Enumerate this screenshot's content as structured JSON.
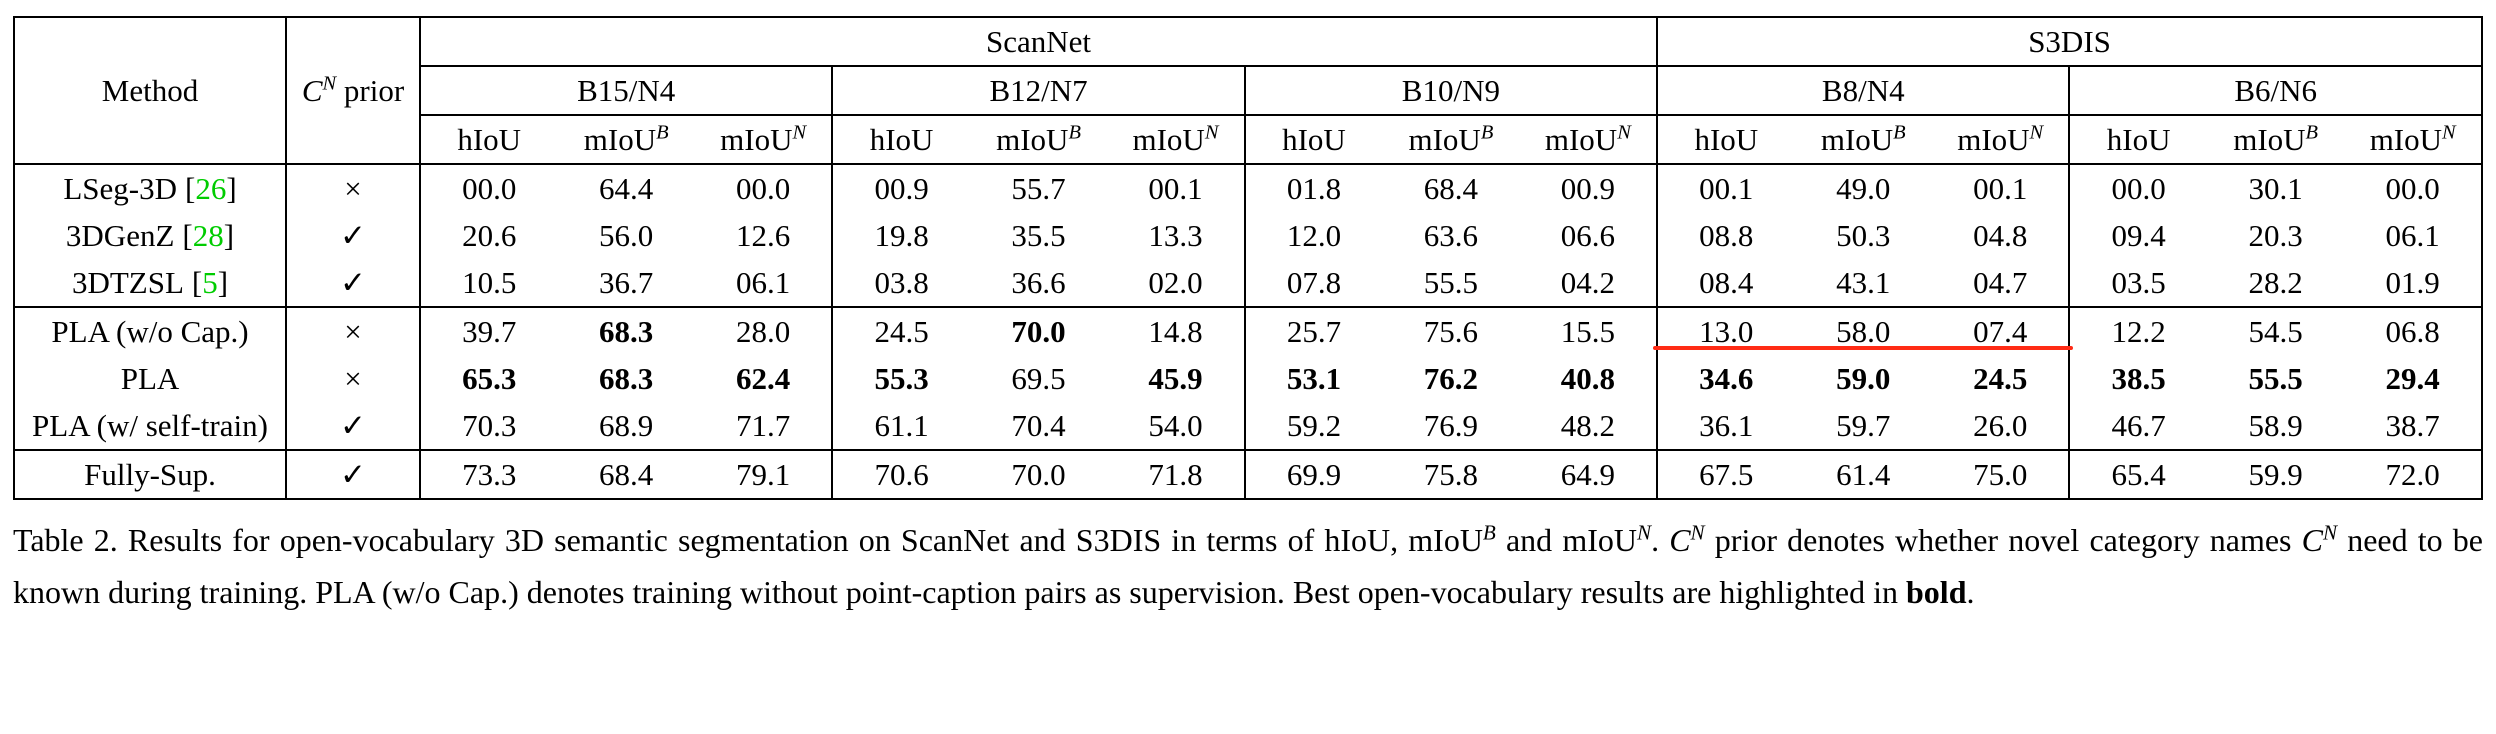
{
  "colors": {
    "citation_green": "#00cc00",
    "annotation_red": "#ff2b15",
    "text": "#000000",
    "background": "#ffffff"
  },
  "table": {
    "citation_format": {
      "open": "[",
      "close": "]"
    },
    "header": {
      "method_label": "Method",
      "prior_label": {
        "cal": "C",
        "sup": "N",
        "rest": " prior"
      },
      "datasets": [
        {
          "label": "ScanNet",
          "partitions": [
            "B15/N4",
            "B12/N7",
            "B10/N9"
          ]
        },
        {
          "label": "S3DIS",
          "partitions": [
            "B8/N4",
            "B6/N6"
          ]
        }
      ],
      "metrics": [
        {
          "t": "hIoU",
          "sup": ""
        },
        {
          "t": "mIoU",
          "sup": "B"
        },
        {
          "t": "mIoU",
          "sup": "N"
        }
      ]
    },
    "rows": [
      {
        "method": "LSeg-3D",
        "cite": "26",
        "prior": "×",
        "values": [
          "00.0",
          "64.4",
          "00.0",
          "00.9",
          "55.7",
          "00.1",
          "01.8",
          "68.4",
          "00.9",
          "00.1",
          "49.0",
          "00.1",
          "00.0",
          "30.1",
          "00.0"
        ],
        "bold": [],
        "group_end": false
      },
      {
        "method": "3DGenZ",
        "cite": "28",
        "prior": "✓",
        "values": [
          "20.6",
          "56.0",
          "12.6",
          "19.8",
          "35.5",
          "13.3",
          "12.0",
          "63.6",
          "06.6",
          "08.8",
          "50.3",
          "04.8",
          "09.4",
          "20.3",
          "06.1"
        ],
        "bold": [],
        "group_end": false
      },
      {
        "method": "3DTZSL",
        "cite": "5",
        "prior": "✓",
        "values": [
          "10.5",
          "36.7",
          "06.1",
          "03.8",
          "36.6",
          "02.0",
          "07.8",
          "55.5",
          "04.2",
          "08.4",
          "43.1",
          "04.7",
          "03.5",
          "28.2",
          "01.9"
        ],
        "bold": [],
        "group_end": true
      },
      {
        "method": "PLA (w/o Cap.)",
        "cite": null,
        "prior": "×",
        "values": [
          "39.7",
          "68.3",
          "28.0",
          "24.5",
          "70.0",
          "14.8",
          "25.7",
          "75.6",
          "15.5",
          "13.0",
          "58.0",
          "07.4",
          "12.2",
          "54.5",
          "06.8"
        ],
        "bold": [
          1,
          4
        ],
        "red_underline": [
          9,
          10,
          11
        ],
        "group_end": false
      },
      {
        "method": "PLA",
        "cite": null,
        "prior": "×",
        "values": [
          "65.3",
          "68.3",
          "62.4",
          "55.3",
          "69.5",
          "45.9",
          "53.1",
          "76.2",
          "40.8",
          "34.6",
          "59.0",
          "24.5",
          "38.5",
          "55.5",
          "29.4"
        ],
        "bold": [
          0,
          1,
          2,
          3,
          5,
          6,
          7,
          8,
          9,
          10,
          11,
          12,
          13,
          14
        ],
        "group_end": false
      },
      {
        "method": "PLA (w/ self-train)",
        "cite": null,
        "prior": "✓",
        "values": [
          "70.3",
          "68.9",
          "71.7",
          "61.1",
          "70.4",
          "54.0",
          "59.2",
          "76.9",
          "48.2",
          "36.1",
          "59.7",
          "26.0",
          "46.7",
          "58.9",
          "38.7"
        ],
        "bold": [],
        "group_end": true
      },
      {
        "method": "Fully-Sup.",
        "cite": null,
        "prior": "✓",
        "values": [
          "73.3",
          "68.4",
          "79.1",
          "70.6",
          "70.0",
          "71.8",
          "69.9",
          "75.8",
          "64.9",
          "67.5",
          "61.4",
          "75.0",
          "65.4",
          "59.9",
          "72.0"
        ],
        "bold": [],
        "group_end": false
      }
    ],
    "annotation": {
      "type": "hand-drawn-red-underline",
      "row_index": 3,
      "cell_indices": [
        9,
        10,
        11
      ],
      "color": "#ff2b15"
    }
  },
  "caption": {
    "segments": [
      {
        "style": "plain",
        "t": "Table 2. Results for open-vocabulary 3D semantic segmentation on ScanNet and S3DIS in terms of hIoU, mIoU"
      },
      {
        "style": "sup-ital",
        "t": "B"
      },
      {
        "style": "plain",
        "t": " and mIoU"
      },
      {
        "style": "sup-ital",
        "t": "N"
      },
      {
        "style": "plain",
        "t": ". "
      },
      {
        "style": "cal",
        "t": "C"
      },
      {
        "style": "sup-ital",
        "t": "N"
      },
      {
        "style": "plain",
        "t": " prior denotes whether novel category names "
      },
      {
        "style": "cal",
        "t": "C"
      },
      {
        "style": "sup-ital",
        "t": "N"
      },
      {
        "style": "plain",
        "t": " need to be known during training. PLA (w/o Cap.) denotes training without point-caption pairs as supervision. Best open-vocabulary results are highlighted in "
      },
      {
        "style": "bold",
        "t": "bold"
      },
      {
        "style": "plain",
        "t": "."
      }
    ]
  }
}
